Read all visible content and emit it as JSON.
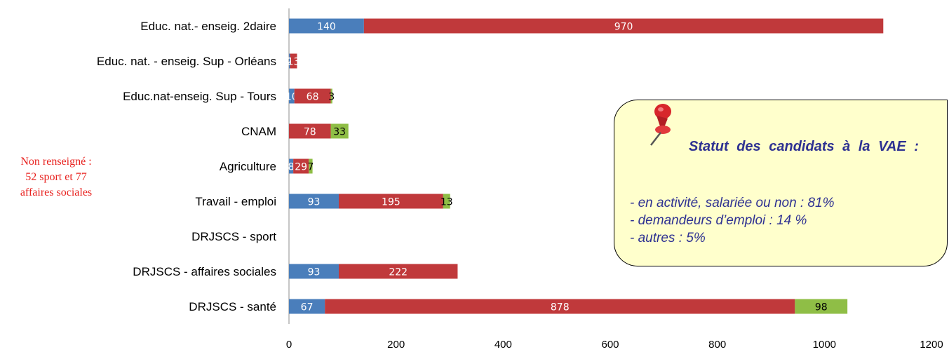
{
  "chart_data": {
    "type": "bar",
    "orientation": "horizontal",
    "stacked": true,
    "categories": [
      "Educ. nat.- enseig. 2daire",
      "Educ. nat. - enseig. Sup - Orléans",
      "Educ.nat-enseig. Sup - Tours",
      "CNAM",
      "Agriculture",
      "Travail - emploi",
      "DRJSCS - sport",
      "DRJSCS - affaires sociales",
      "DRJSCS - santé"
    ],
    "series": [
      {
        "color": "#4a7ebb",
        "values": [
          140,
          2,
          10,
          0,
          8,
          93,
          0,
          93,
          67
        ],
        "labels": [
          "140",
          "2",
          "10",
          "",
          "8",
          "93",
          "",
          "93",
          "67"
        ]
      },
      {
        "color": "#c0393b",
        "values": [
          970,
          13,
          68,
          78,
          29,
          195,
          0,
          222,
          878
        ],
        "labels": [
          "970",
          "13",
          "68",
          "78",
          "29",
          "195",
          "",
          "222",
          "878"
        ]
      },
      {
        "color": "#8fbe46",
        "values": [
          0,
          0,
          3,
          33,
          7,
          13,
          0,
          0,
          98
        ],
        "labels": [
          "",
          "",
          "3",
          "33",
          "7",
          "13",
          "",
          "",
          "98"
        ]
      }
    ],
    "xlim": [
      0,
      1200
    ],
    "xticks": [
      "0",
      "200",
      "400",
      "600",
      "800",
      "1000",
      "1200"
    ],
    "grid": false,
    "legend": "none"
  },
  "note": {
    "line1": "Non renseigné :",
    "line2": "52 sport et 77",
    "line3": "affaires sociales",
    "color": "#e8221f"
  },
  "callout": {
    "icon": "pushpin-icon",
    "title": "Statut des candidats à la VAE :",
    "lines": [
      "- en activité, salariée ou non : 81%",
      "- demandeurs d’emploi : 14 %",
      "- autres : 5%"
    ],
    "text_color": "#2e3192",
    "background": "#ffffcc"
  }
}
